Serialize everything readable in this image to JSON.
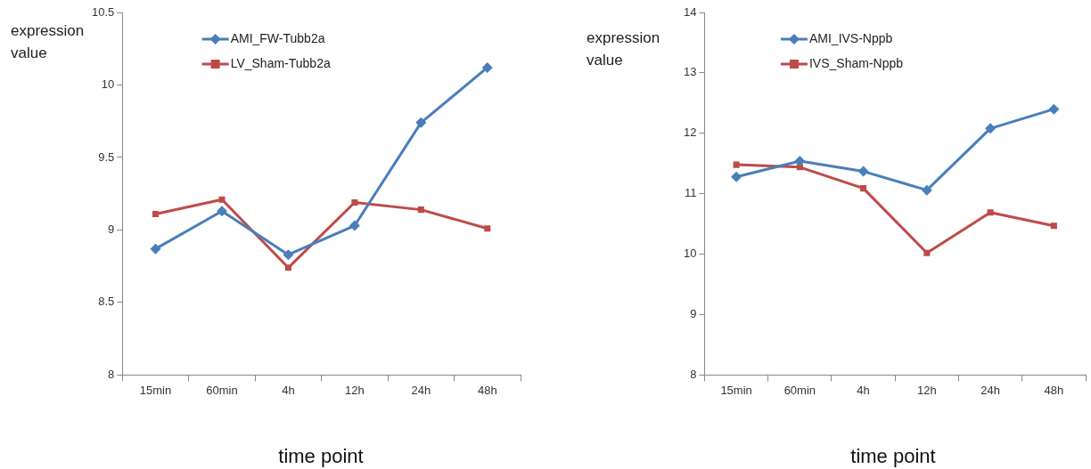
{
  "chart_data": [
    {
      "type": "line",
      "xlabel": "time point",
      "ylabel": "expression value",
      "categories": [
        "15min",
        "60min",
        "4h",
        "12h",
        "24h",
        "48h"
      ],
      "series": [
        {
          "name": "AMI_FW-Tubb2a",
          "color": "#4a7ebb",
          "marker": "diamond",
          "values": [
            8.87,
            9.13,
            8.83,
            9.03,
            9.74,
            10.12
          ]
        },
        {
          "name": "LV_Sham-Tubb2a",
          "color": "#be4b48",
          "marker": "square",
          "values": [
            9.11,
            9.21,
            8.74,
            9.19,
            9.14,
            9.01
          ]
        }
      ],
      "ylim": [
        8,
        10.5
      ],
      "yticks": [
        8,
        8.5,
        9,
        9.5,
        10,
        10.5
      ],
      "grid": false,
      "legend": "top left",
      "line_style": "solid"
    },
    {
      "type": "line",
      "xlabel": "time point",
      "ylabel": "expression value",
      "categories": [
        "15min",
        "60min",
        "4h",
        "12h",
        "24h",
        "48h"
      ],
      "series": [
        {
          "name": "AMI_IVS-Nppb",
          "color": "#4a7ebb",
          "marker": "diamond",
          "values": [
            11.28,
            11.54,
            11.37,
            11.06,
            12.08,
            12.4
          ]
        },
        {
          "name": "IVS_Sham-Nppb",
          "color": "#be4b48",
          "marker": "square",
          "values": [
            11.48,
            11.44,
            11.09,
            10.02,
            10.69,
            10.47
          ]
        }
      ],
      "ylim": [
        8,
        14
      ],
      "yticks": [
        8,
        9,
        10,
        11,
        12,
        13,
        14
      ],
      "grid": false,
      "legend": "top left",
      "line_style": "solid"
    }
  ]
}
